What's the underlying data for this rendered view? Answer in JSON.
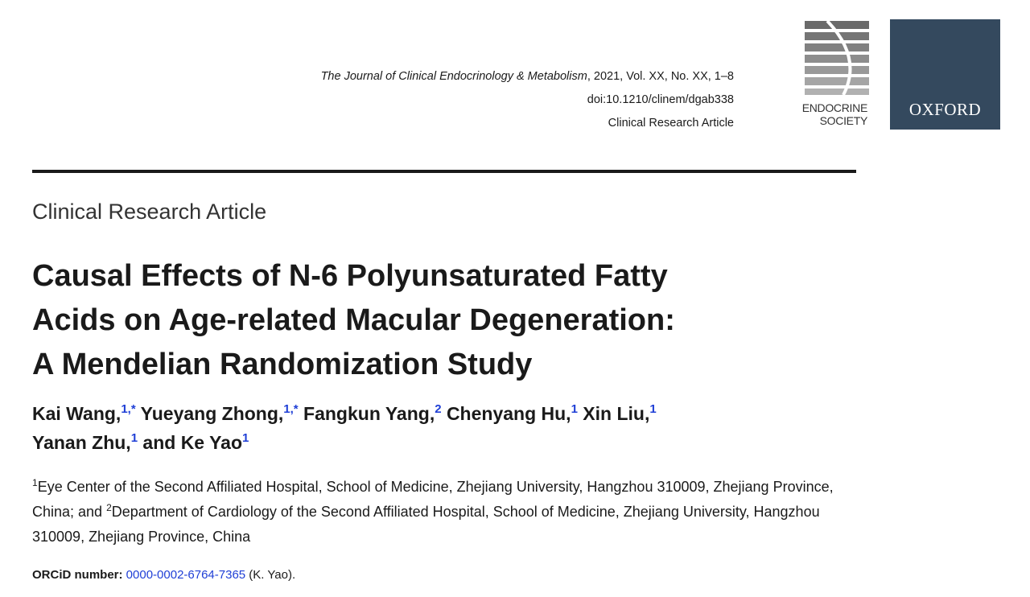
{
  "header": {
    "journal_name": "The Journal of Clinical Endocrinology & Metabolism",
    "journal_details": ", 2021, Vol. XX, No. XX, 1–8",
    "doi": "doi:10.1210/clinem/dgab338",
    "article_type": "Clinical Research Article"
  },
  "logos": {
    "endocrine_line1": "ENDOCRINE",
    "endocrine_line2": "SOCIETY",
    "oxford": "OXFORD"
  },
  "colors": {
    "oxford_bg": "#34495e",
    "link": "#1f3fd6"
  },
  "section_label": "Clinical Research Article",
  "title": {
    "line1": "Causal Effects of N-6 Polyunsaturated Fatty",
    "line2": "Acids on Age-related Macular Degeneration:",
    "line3": "A Mendelian Randomization Study"
  },
  "authors": [
    {
      "name": "Kai Wang,",
      "sup": "1,*"
    },
    {
      "name": "Yueyang Zhong,",
      "sup": "1,*"
    },
    {
      "name": "Fangkun Yang,",
      "sup": "2"
    },
    {
      "name": "Chenyang Hu,",
      "sup": "1"
    },
    {
      "name": "Xin Liu,",
      "sup": "1"
    },
    {
      "name": "Yanan Zhu,",
      "sup": "1"
    },
    {
      "name": "and Ke Yao",
      "sup": "1"
    }
  ],
  "affiliations": {
    "sup1": "1",
    "text1": "Eye Center of the Second Affiliated Hospital, School of Medicine, Zhejiang University, Hangzhou 310009, Zhejiang Province, China; and ",
    "sup2": "2",
    "text2": "Department of Cardiology of the Second Affiliated Hospital, School of Medicine, Zhejiang University, Hangzhou 310009, Zhejiang Province, China"
  },
  "orcid": {
    "label": "ORCiD number:",
    "id": "0000-0002-6764-7365",
    "suffix": " (K. Yao)."
  }
}
